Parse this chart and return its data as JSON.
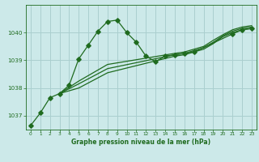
{
  "xlabel": "Graphe pression niveau de la mer (hPa)",
  "xlim": [
    -0.5,
    23.5
  ],
  "ylim": [
    1036.5,
    1041.0
  ],
  "yticks": [
    1037,
    1038,
    1039,
    1040
  ],
  "xticks": [
    0,
    1,
    2,
    3,
    4,
    5,
    6,
    7,
    8,
    9,
    10,
    11,
    12,
    13,
    14,
    15,
    16,
    17,
    18,
    19,
    20,
    21,
    22,
    23
  ],
  "bg_color": "#cce9e9",
  "grid_color": "#aacfcf",
  "line_color": "#1f6b1f",
  "line1_x": [
    0,
    1,
    2,
    3,
    4,
    5,
    6,
    7,
    8,
    9,
    10,
    11,
    12,
    13,
    14,
    15,
    16,
    17,
    21,
    22,
    23
  ],
  "line1_y": [
    1036.65,
    1037.1,
    1037.65,
    1037.8,
    1038.1,
    1039.05,
    1039.55,
    1040.05,
    1040.4,
    1040.45,
    1040.0,
    1039.65,
    1039.15,
    1038.95,
    1039.15,
    1039.2,
    1039.25,
    1039.3,
    1039.95,
    1040.1,
    1040.15
  ],
  "line2_x": [
    3,
    5,
    8,
    15,
    16,
    17,
    18,
    19,
    20,
    21,
    22,
    23
  ],
  "line2_y": [
    1037.8,
    1038.0,
    1038.55,
    1039.15,
    1039.2,
    1039.3,
    1039.4,
    1039.6,
    1039.85,
    1040.0,
    1040.1,
    1040.15
  ],
  "line3_x": [
    3,
    5,
    8,
    15,
    16,
    17,
    18,
    19,
    20,
    21,
    22,
    23
  ],
  "line3_y": [
    1037.8,
    1038.15,
    1038.7,
    1039.2,
    1039.25,
    1039.35,
    1039.45,
    1039.65,
    1039.88,
    1040.05,
    1040.15,
    1040.2
  ],
  "line4_x": [
    3,
    5,
    8,
    15,
    16,
    17,
    18,
    19,
    20,
    21,
    22,
    23
  ],
  "line4_y": [
    1037.8,
    1038.25,
    1038.85,
    1039.25,
    1039.3,
    1039.4,
    1039.5,
    1039.72,
    1039.92,
    1040.1,
    1040.2,
    1040.25
  ],
  "marker_size": 2.8,
  "linewidth": 0.9
}
